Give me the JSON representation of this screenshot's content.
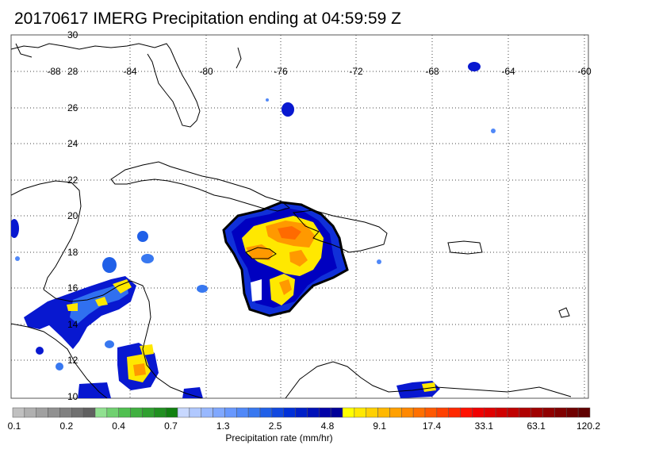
{
  "title": "20170617 IMERG Precipitation ending at 04:59:59 Z",
  "map": {
    "lon_ticks": [
      "-88",
      "-84",
      "-80",
      "-76",
      "-72",
      "-68",
      "-64",
      "-60"
    ],
    "lat_ticks": [
      "30",
      "28",
      "26",
      "24",
      "22",
      "20",
      "18",
      "16",
      "14",
      "12",
      "10"
    ],
    "gridlines": "dotted"
  },
  "colorbar": {
    "label": "Precipitation rate (mm/hr)",
    "tick_labels": [
      "0.1",
      "0.2",
      "0.4",
      "0.7",
      "1.3",
      "2.5",
      "4.8",
      "9.1",
      "17.4",
      "33.1",
      "63.1",
      "120.2"
    ],
    "colors": [
      "#c0c0c0",
      "#b0b0b0",
      "#a0a0a0",
      "#909090",
      "#808080",
      "#707070",
      "#606060",
      "#90e090",
      "#70d070",
      "#50c050",
      "#40b040",
      "#30a030",
      "#209020",
      "#108010",
      "#c8d8ff",
      "#b0c8ff",
      "#98b8ff",
      "#80a8ff",
      "#6898ff",
      "#5088f8",
      "#3878f0",
      "#2060e8",
      "#1048e0",
      "#0030d8",
      "#0020c8",
      "#0010b8",
      "#0000a8",
      "#000098",
      "#ffff00",
      "#ffe800",
      "#ffd000",
      "#ffb800",
      "#ffa000",
      "#ff8800",
      "#ff7000",
      "#ff5800",
      "#ff4000",
      "#ff2800",
      "#ff1000",
      "#f00000",
      "#e00000",
      "#d00000",
      "#c00000",
      "#b00000",
      "#a00000",
      "#900000",
      "#800000",
      "#700000",
      "#600000"
    ]
  },
  "precip_colors": {
    "light": "#2060e8",
    "moderate": "#0000c8",
    "heavy": "#ffff00",
    "very_heavy": "#ff9900",
    "extreme": "#ff4400"
  }
}
